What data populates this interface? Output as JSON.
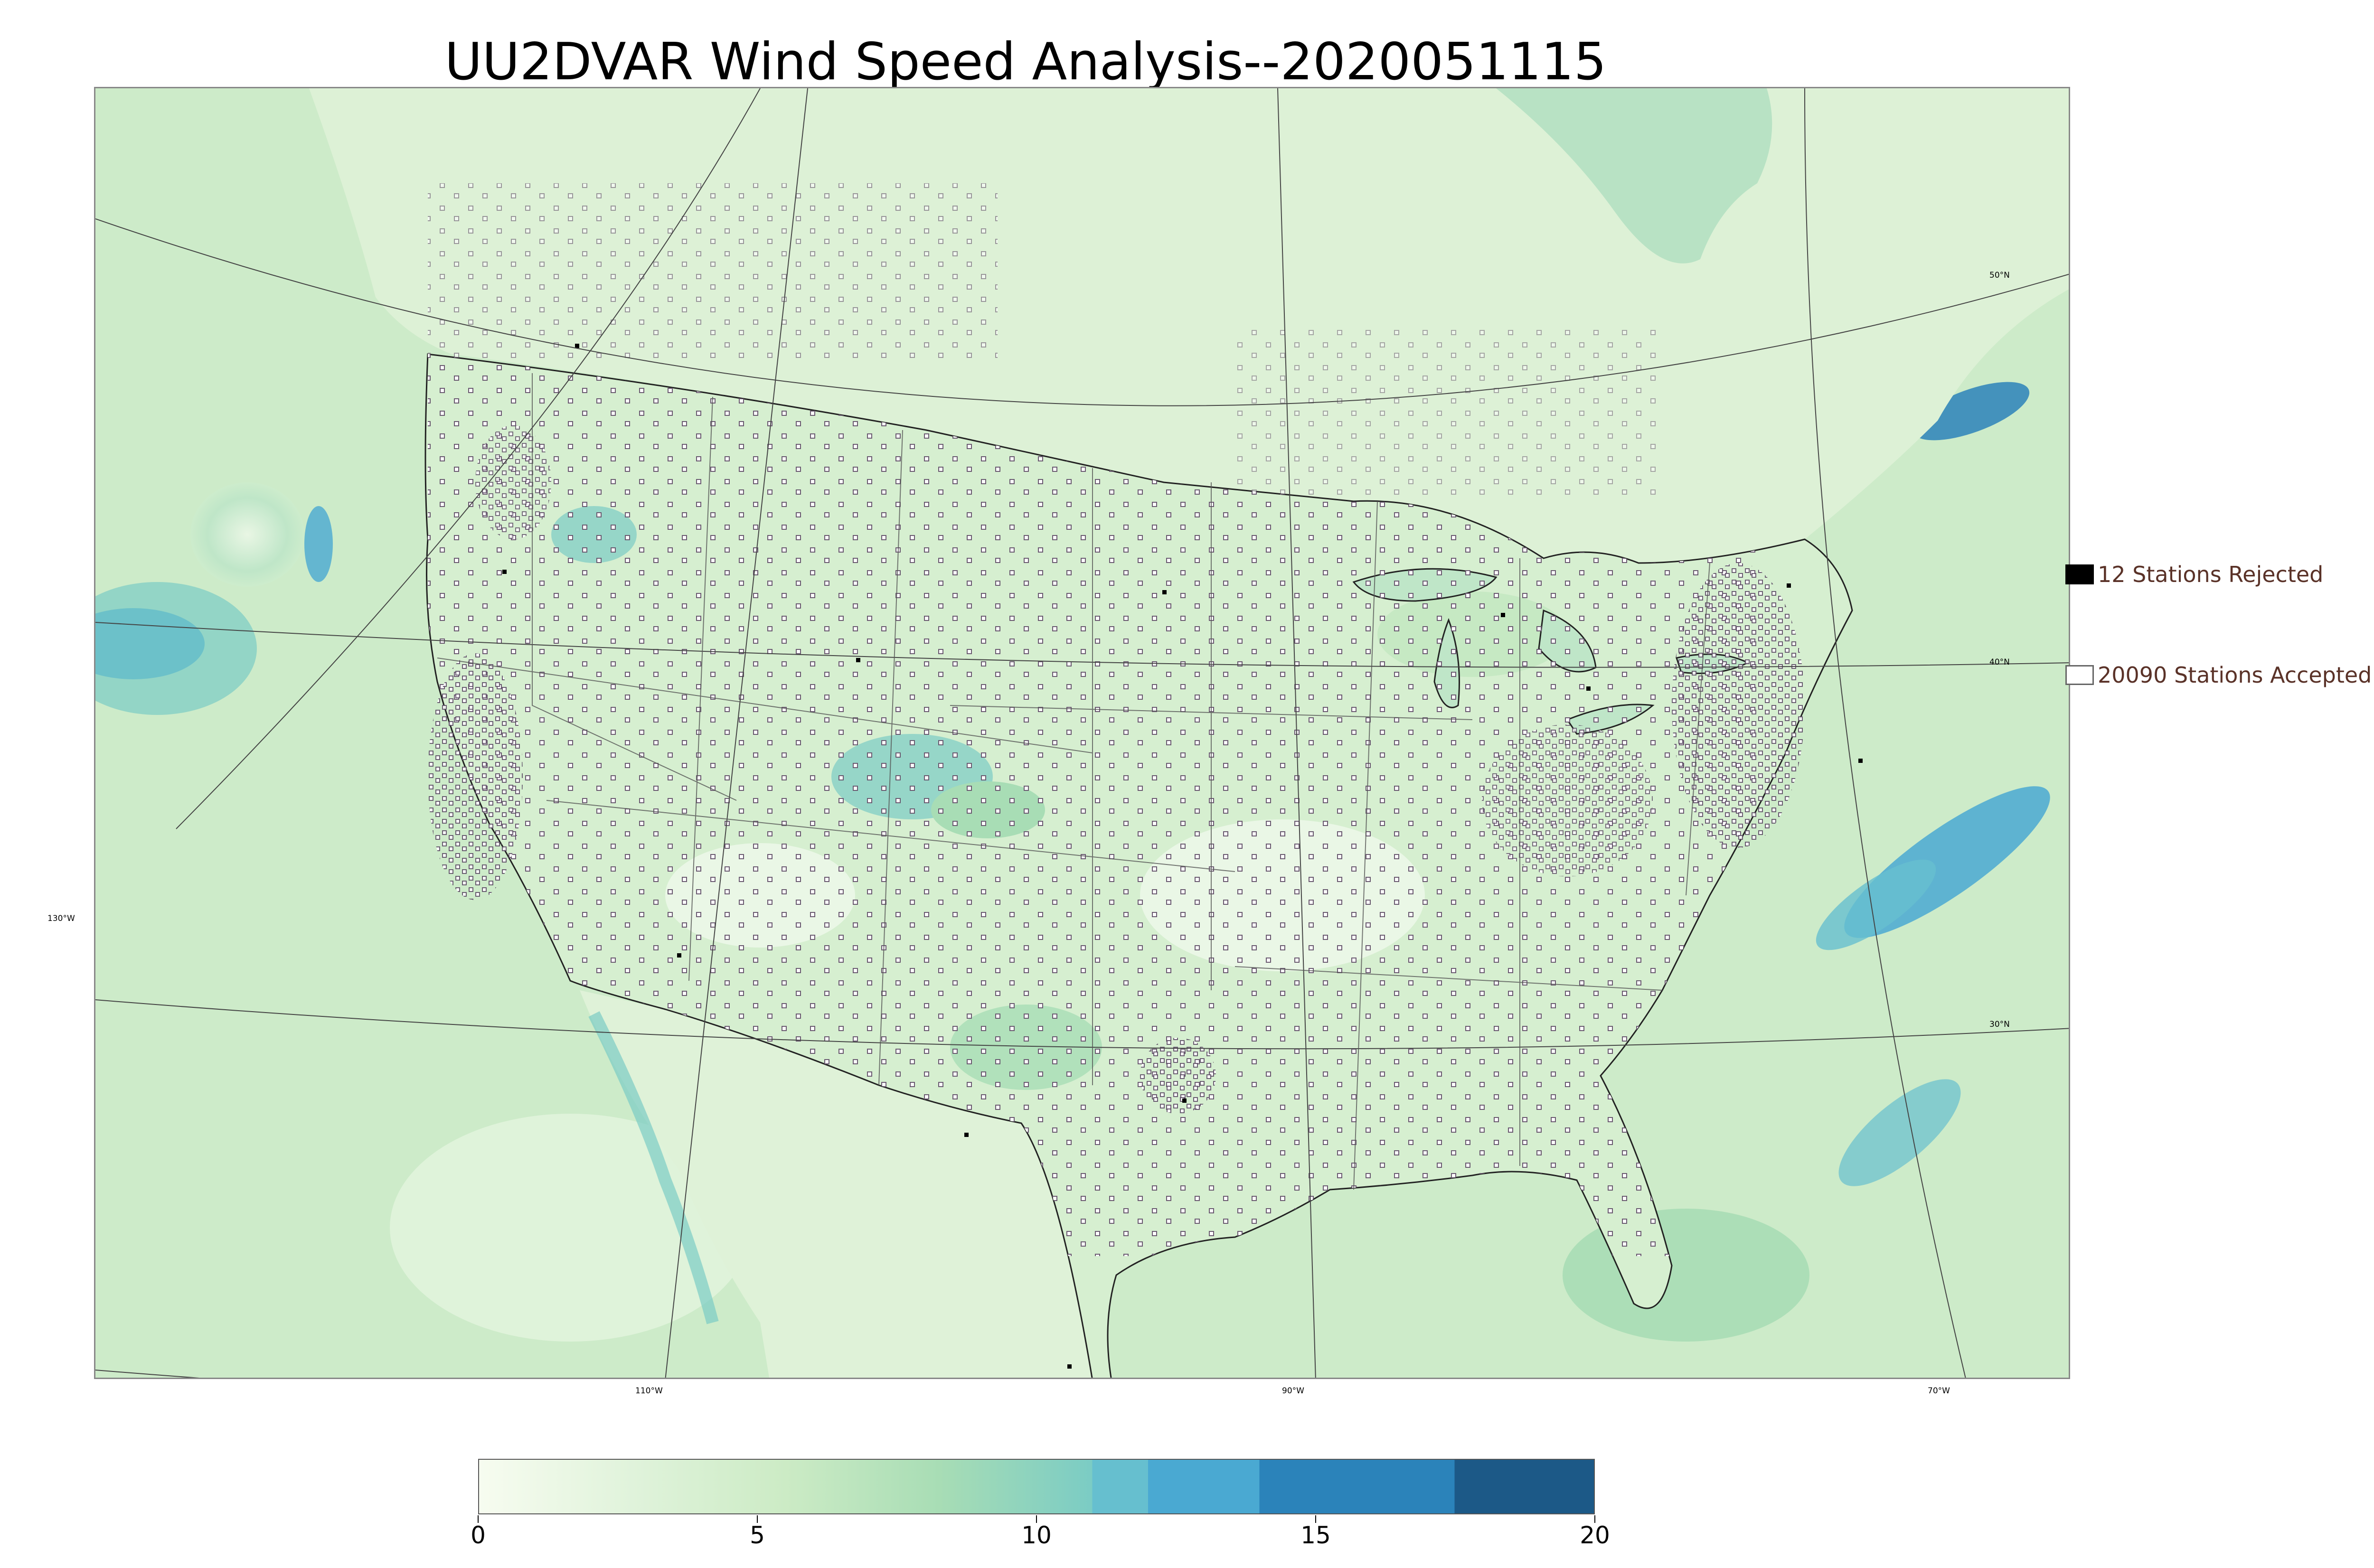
{
  "title": "UU2DVAR Wind Speed Analysis--2020051115",
  "map": {
    "projection": "lambert-conformal",
    "basemap": [
      "coastlines",
      "country-borders",
      "state-borders",
      "graticule"
    ],
    "lon_labels": [
      "110°W",
      "90°W",
      "70°W"
    ],
    "lat_labels": [
      "50°N",
      "40°N",
      "30°N"
    ],
    "side_lon_label": "130°W",
    "wind_colormap": "GnBu",
    "station_marker_accepted": "open-square",
    "station_marker_rejected": "filled-square"
  },
  "legend": {
    "rejected": {
      "label": "12 Stations Rejected",
      "count": 12,
      "swatch_color": "#000000"
    },
    "accepted": {
      "label": "20090 Stations Accepted",
      "count": 20090,
      "swatch_color": "#ffffff"
    }
  },
  "colorbar": {
    "ticks": [
      "0",
      "5",
      "10",
      "15",
      "20"
    ],
    "min": 0,
    "max": 20,
    "gradient_colors": [
      "#f7fcf0",
      "#e0f3db",
      "#ccebc5",
      "#a8ddb5",
      "#7bccc4"
    ],
    "bands": [
      {
        "from": 11,
        "to": 12,
        "color": "#66bfcf"
      },
      {
        "from": 12,
        "to": 14,
        "color": "#4aa9d2"
      },
      {
        "from": 14,
        "to": 17.5,
        "color": "#2b83ba"
      },
      {
        "from": 17.5,
        "to": 20,
        "color": "#1c5987"
      }
    ],
    "gradient_end": 11
  }
}
